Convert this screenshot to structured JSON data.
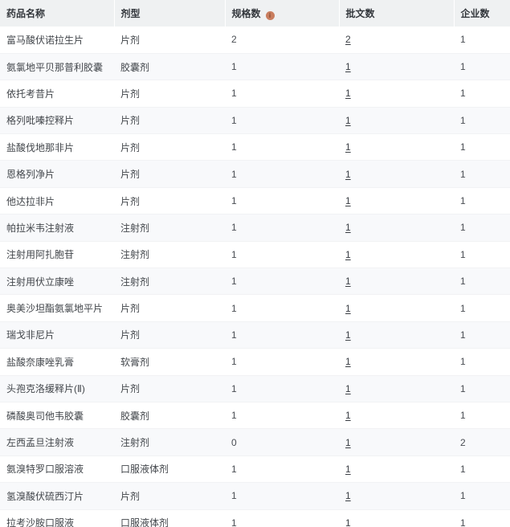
{
  "table": {
    "columns": [
      {
        "label": "药品名称"
      },
      {
        "label": "剂型"
      },
      {
        "label": "规格数",
        "has_info_icon": true
      },
      {
        "label": "批文数"
      },
      {
        "label": "企业数"
      }
    ],
    "rows": [
      {
        "name": "富马酸伏诺拉生片",
        "form": "片剂",
        "spec": "2",
        "approval": "2",
        "approval_link": true,
        "enterprise": "1"
      },
      {
        "name": "氨氯地平贝那普利胶囊",
        "form": "胶囊剂",
        "spec": "1",
        "approval": "1",
        "approval_link": true,
        "enterprise": "1"
      },
      {
        "name": "依托考昔片",
        "form": "片剂",
        "spec": "1",
        "approval": "1",
        "approval_link": true,
        "enterprise": "1"
      },
      {
        "name": "格列吡嗪控释片",
        "form": "片剂",
        "spec": "1",
        "approval": "1",
        "approval_link": true,
        "enterprise": "1"
      },
      {
        "name": "盐酸伐地那非片",
        "form": "片剂",
        "spec": "1",
        "approval": "1",
        "approval_link": true,
        "enterprise": "1"
      },
      {
        "name": "恩格列净片",
        "form": "片剂",
        "spec": "1",
        "approval": "1",
        "approval_link": true,
        "enterprise": "1"
      },
      {
        "name": "他达拉非片",
        "form": "片剂",
        "spec": "1",
        "approval": "1",
        "approval_link": true,
        "enterprise": "1"
      },
      {
        "name": "帕拉米韦注射液",
        "form": "注射剂",
        "spec": "1",
        "approval": "1",
        "approval_link": true,
        "enterprise": "1"
      },
      {
        "name": "注射用阿扎胞苷",
        "form": "注射剂",
        "spec": "1",
        "approval": "1",
        "approval_link": true,
        "enterprise": "1"
      },
      {
        "name": "注射用伏立康唑",
        "form": "注射剂",
        "spec": "1",
        "approval": "1",
        "approval_link": true,
        "enterprise": "1"
      },
      {
        "name": "奥美沙坦酯氨氯地平片",
        "form": "片剂",
        "spec": "1",
        "approval": "1",
        "approval_link": true,
        "enterprise": "1"
      },
      {
        "name": "瑞戈非尼片",
        "form": "片剂",
        "spec": "1",
        "approval": "1",
        "approval_link": true,
        "enterprise": "1"
      },
      {
        "name": "盐酸奈康唑乳膏",
        "form": "软膏剂",
        "spec": "1",
        "approval": "1",
        "approval_link": true,
        "enterprise": "1"
      },
      {
        "name": "头孢克洛缓释片(Ⅱ)",
        "form": "片剂",
        "spec": "1",
        "approval": "1",
        "approval_link": true,
        "enterprise": "1"
      },
      {
        "name": "磷酸奥司他韦胶囊",
        "form": "胶囊剂",
        "spec": "1",
        "approval": "1",
        "approval_link": true,
        "enterprise": "1"
      },
      {
        "name": "左西孟旦注射液",
        "form": "注射剂",
        "spec": "0",
        "approval": "1",
        "approval_link": true,
        "enterprise": "2"
      },
      {
        "name": "氨溴特罗口服溶液",
        "form": "口服液体剂",
        "spec": "1",
        "approval": "1",
        "approval_link": true,
        "enterprise": "1"
      },
      {
        "name": "氢溴酸伏硫西汀片",
        "form": "片剂",
        "spec": "1",
        "approval": "1",
        "approval_link": true,
        "enterprise": "1"
      },
      {
        "name": "拉考沙胺口服液",
        "form": "口服液体剂",
        "spec": "1",
        "approval": "1",
        "approval_link": false,
        "enterprise": "1"
      }
    ]
  },
  "icons": {
    "spec_info_glyph": "i"
  },
  "colors": {
    "header_bg": "#eff1f2",
    "stripe_bg": "#f8f9fb",
    "info_icon": "#c97e5f",
    "text": "#42464b"
  }
}
